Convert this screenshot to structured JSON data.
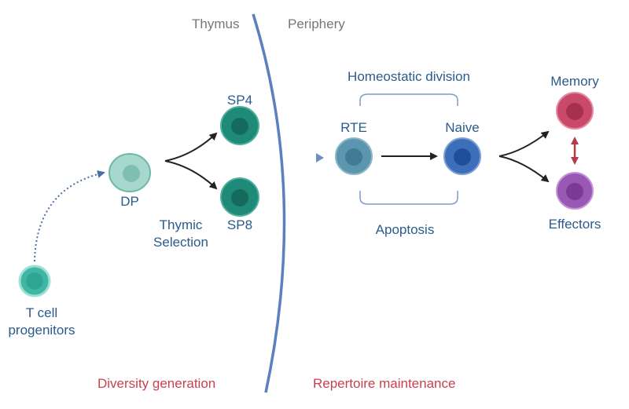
{
  "regions": {
    "left": "Thymus",
    "right": "Periphery"
  },
  "cells": {
    "progenitor": {
      "label_line1": "T cell",
      "label_line2": "progenitors"
    },
    "dp": {
      "label": "DP"
    },
    "sp4": {
      "label": "SP4"
    },
    "sp8": {
      "label": "SP8"
    },
    "rte": {
      "label": "RTE"
    },
    "naive": {
      "label": "Naive"
    },
    "memory": {
      "label": "Memory"
    },
    "effectors": {
      "label": "Effectors"
    }
  },
  "processes": {
    "selection_line1": "Thymic",
    "selection_line2": "Selection",
    "homeostatic": "Homeostatic division",
    "apoptosis": "Apoptosis"
  },
  "phases": {
    "left": "Diversity generation",
    "right": "Repertoire maintenance"
  },
  "colors": {
    "text_blue": "#2a5b8c",
    "region_gray": "#777777",
    "phase_red": "#c8404f",
    "boundary": "#5b7fbf",
    "progenitor": "#3fb7a4",
    "dp": "#a6d8ce",
    "sp": "#1f8a78",
    "rte": "#5a96ad",
    "naive": "#3d6fb8",
    "memory": "#c9496a",
    "effectors": "#9a58b5",
    "double_arrow": "#b33a4a"
  }
}
